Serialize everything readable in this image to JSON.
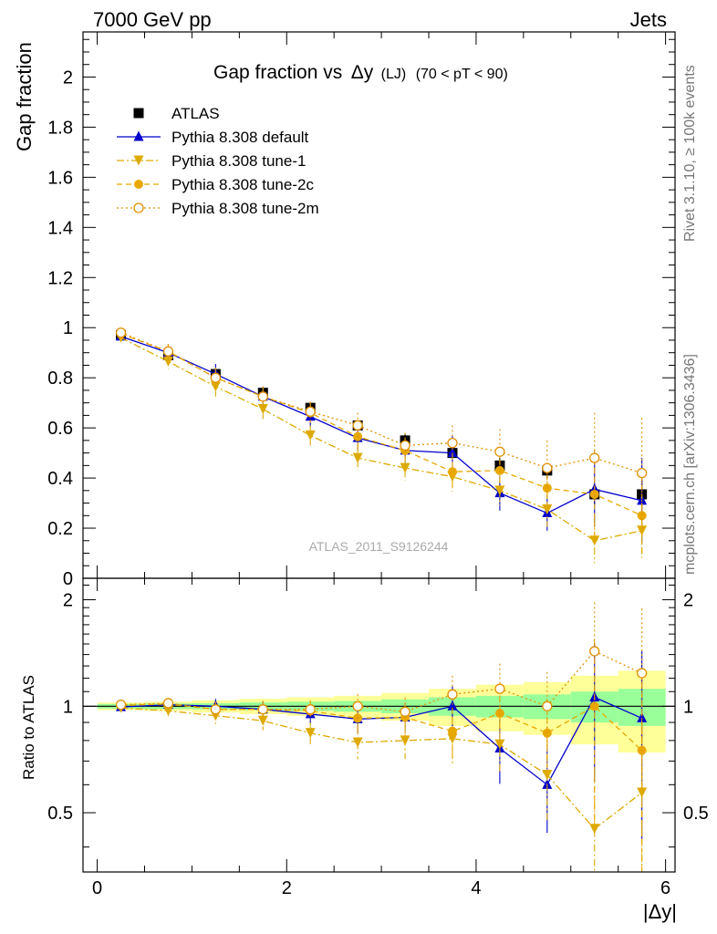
{
  "header": {
    "left": "7000 GeV pp",
    "right": "Jets"
  },
  "side_labels": {
    "rivet": "Rivet 3.1.10, ≥ 100k events",
    "mcplots": "mcplots.cern.ch [arXiv:1306.3436]"
  },
  "chart_data": {
    "type": "line",
    "title_main": "Gap fraction vs",
    "title_var": "Δy",
    "title_sub": "(LJ)",
    "title_range": "(70 < pT <  90)",
    "watermark": "ATLAS_2011_S9126244",
    "ylabel": "Gap fraction",
    "ratio_ylabel": "Ratio to ATLAS",
    "xlabel": "|Δy|",
    "xlim": [
      -0.15,
      6.1
    ],
    "ylim": [
      0,
      2.18
    ],
    "ratio_ylim": [
      0.34,
      2.3
    ],
    "ratio_scale": "log",
    "x_ticks": [
      "0",
      "2",
      "4",
      "6"
    ],
    "y_ticks": [
      "0",
      "0.2",
      "0.4",
      "0.6",
      "0.8",
      "1",
      "1.2",
      "1.4",
      "1.6",
      "1.8",
      "2"
    ],
    "ratio_ticks_left": [
      "0.5",
      "1",
      "2"
    ],
    "ratio_ticks_right": [
      "0.5",
      "1",
      "2"
    ],
    "x": [
      0.25,
      0.75,
      1.25,
      1.75,
      2.25,
      2.75,
      3.25,
      3.75,
      4.25,
      4.75,
      5.25,
      5.75
    ],
    "x_edges": [
      0,
      0.5,
      1,
      1.5,
      2,
      2.5,
      3,
      3.5,
      4,
      4.5,
      5,
      5.5,
      6
    ],
    "reference": {
      "name": "ATLAS",
      "values": [
        0.97,
        0.89,
        0.815,
        0.74,
        0.68,
        0.61,
        0.55,
        0.5,
        0.45,
        0.43,
        0.335,
        0.335
      ],
      "errors": [
        0.02,
        0.02,
        0.02,
        0.02,
        0.02,
        0.02,
        0.025,
        0.025,
        0.03,
        0.03,
        0.04,
        0.06
      ],
      "band_stat": [
        0.015,
        0.018,
        0.02,
        0.025,
        0.03,
        0.035,
        0.045,
        0.06,
        0.07,
        0.08,
        0.1,
        0.12
      ],
      "band_total": [
        0.025,
        0.03,
        0.04,
        0.05,
        0.06,
        0.07,
        0.09,
        0.12,
        0.15,
        0.17,
        0.22,
        0.26
      ]
    },
    "series": [
      {
        "name": "Pythia 8.308 default",
        "color": "#0000cc",
        "dash": "",
        "marker": "triangle-up",
        "values": [
          0.965,
          0.9,
          0.815,
          0.725,
          0.645,
          0.56,
          0.51,
          0.5,
          0.34,
          0.26,
          0.355,
          0.31
        ],
        "errors": [
          0.02,
          0.03,
          0.04,
          0.04,
          0.04,
          0.05,
          0.05,
          0.07,
          0.07,
          0.07,
          0.15,
          0.17
        ],
        "ratio": [
          0.995,
          1.01,
          1.0,
          0.98,
          0.95,
          0.92,
          0.93,
          1.0,
          0.76,
          0.6,
          1.06,
          0.925
        ]
      },
      {
        "name": "Pythia 8.308 tune-1",
        "color": "#ddaa00",
        "dash": "8,3,2,3",
        "marker": "triangle-down",
        "values": [
          0.96,
          0.865,
          0.765,
          0.675,
          0.57,
          0.48,
          0.44,
          0.405,
          0.35,
          0.275,
          0.15,
          0.19
        ],
        "errors": [
          0.02,
          0.03,
          0.04,
          0.04,
          0.04,
          0.05,
          0.05,
          0.06,
          0.06,
          0.07,
          0.09,
          0.11
        ],
        "ratio": [
          0.99,
          0.97,
          0.94,
          0.91,
          0.84,
          0.79,
          0.8,
          0.81,
          0.78,
          0.64,
          0.45,
          0.57
        ]
      },
      {
        "name": "Pythia 8.308 tune-2c",
        "color": "#e8a800",
        "dash": "6,4",
        "marker": "circle",
        "values": [
          0.975,
          0.905,
          0.8,
          0.725,
          0.66,
          0.565,
          0.51,
          0.425,
          0.43,
          0.36,
          0.335,
          0.25
        ],
        "errors": [
          0.02,
          0.03,
          0.04,
          0.04,
          0.04,
          0.05,
          0.05,
          0.07,
          0.08,
          0.09,
          0.18,
          0.16
        ],
        "ratio": [
          1.005,
          1.015,
          0.98,
          0.98,
          0.97,
          0.925,
          0.93,
          0.85,
          0.955,
          0.84,
          1.0,
          0.75
        ]
      },
      {
        "name": "Pythia 8.308 tune-2m",
        "color": "#e09000",
        "dash": "2,3",
        "marker": "circle-open",
        "values": [
          0.98,
          0.905,
          0.8,
          0.725,
          0.665,
          0.61,
          0.53,
          0.54,
          0.505,
          0.44,
          0.48,
          0.42
        ],
        "errors": [
          0.02,
          0.03,
          0.04,
          0.04,
          0.04,
          0.05,
          0.05,
          0.07,
          0.09,
          0.11,
          0.18,
          0.22
        ],
        "ratio": [
          1.01,
          1.02,
          0.98,
          0.98,
          0.98,
          1.0,
          0.965,
          1.08,
          1.12,
          1.0,
          1.43,
          1.24
        ]
      }
    ],
    "legend_position": "top-left"
  }
}
